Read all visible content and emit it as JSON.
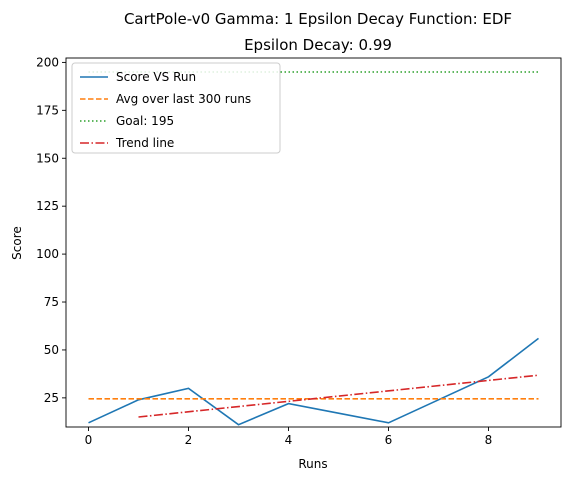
{
  "chart_data": {
    "type": "line",
    "title": "CartPole-v0 Gamma: 1 Epsilon Decay Function: EDF",
    "subtitle": "Epsilon Decay: 0.99",
    "xlabel": "Runs",
    "ylabel": "Score",
    "xlim": [
      -0.45,
      9.45
    ],
    "ylim": [
      9.8,
      202.3
    ],
    "xticks": [
      0,
      2,
      4,
      6,
      8
    ],
    "yticks": [
      25,
      50,
      75,
      100,
      125,
      150,
      175,
      200
    ],
    "grid": false,
    "legend_position": "upper-left",
    "series": [
      {
        "name": "Score VS Run",
        "style": "solid",
        "color": "#1f77b4",
        "x": [
          0,
          1,
          2,
          3,
          4,
          5,
          6,
          7,
          8,
          9
        ],
        "y": [
          12,
          24,
          30,
          11,
          22,
          17,
          12,
          24,
          36,
          56
        ]
      },
      {
        "name": "Avg over last 300 runs",
        "style": "dashed",
        "color": "#ff7f0e",
        "x": [
          0,
          9
        ],
        "y": [
          24.5,
          24.5
        ]
      },
      {
        "name": "Goal: 195",
        "style": "dotted",
        "color": "#2ca02c",
        "x": [
          0,
          9
        ],
        "y": [
          195,
          195
        ]
      },
      {
        "name": "Trend line",
        "style": "dashdot",
        "color": "#d62728",
        "x": [
          1,
          9
        ],
        "y": [
          15,
          36.8
        ]
      }
    ]
  }
}
